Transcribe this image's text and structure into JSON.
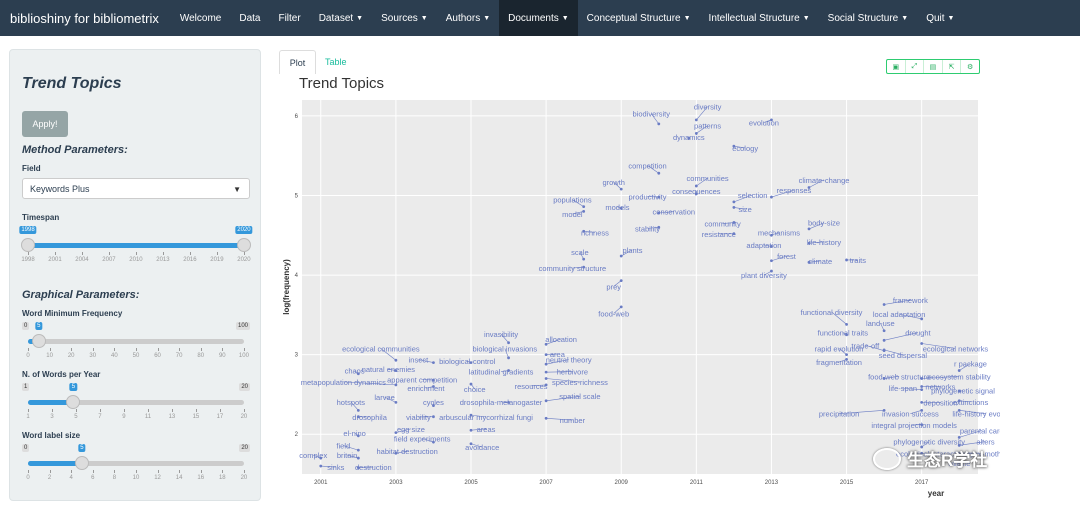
{
  "navbar": {
    "brand": "biblioshiny for bibliometrix",
    "items": [
      {
        "label": "Welcome",
        "caret": false
      },
      {
        "label": "Data",
        "caret": false
      },
      {
        "label": "Filter",
        "caret": false
      },
      {
        "label": "Dataset",
        "caret": true
      },
      {
        "label": "Sources",
        "caret": true
      },
      {
        "label": "Authors",
        "caret": true
      },
      {
        "label": "Documents",
        "caret": true,
        "active": true
      },
      {
        "label": "Conceptual Structure",
        "caret": true
      },
      {
        "label": "Intellectual Structure",
        "caret": true
      },
      {
        "label": "Social Structure",
        "caret": true
      },
      {
        "label": "Quit",
        "caret": true
      }
    ]
  },
  "sidebar": {
    "title": "Trend Topics",
    "apply_label": "Apply!",
    "method_heading": "Method Parameters:",
    "field_label": "Field",
    "field_value": "Keywords Plus",
    "timespan_label": "Timespan",
    "timespan": {
      "min": "1998",
      "max": "2020",
      "from": "1998",
      "to": "2020",
      "ticks": [
        "1998",
        "2001",
        "2004",
        "2007",
        "2010",
        "2013",
        "2016",
        "2019",
        "2020"
      ]
    },
    "graphical_heading": "Graphical Parameters:",
    "word_min_freq": {
      "label": "Word Minimum Frequency",
      "min": "0",
      "max": "100",
      "value": "5",
      "ticks": [
        "0",
        "10",
        "20",
        "30",
        "40",
        "50",
        "60",
        "70",
        "80",
        "90",
        "100"
      ]
    },
    "words_per_year": {
      "label": "N. of Words per Year",
      "min": "1",
      "max": "20",
      "value": "5",
      "ticks": [
        "1",
        "3",
        "5",
        "7",
        "9",
        "11",
        "13",
        "15",
        "17",
        "20"
      ]
    },
    "label_size": {
      "label": "Word label size",
      "min": "0",
      "max": "20",
      "value": "5",
      "ticks": [
        "0",
        "2",
        "4",
        "6",
        "8",
        "10",
        "12",
        "14",
        "16",
        "18",
        "20"
      ]
    }
  },
  "tabs": {
    "plot": "Plot",
    "table": "Table"
  },
  "toolbar_icons": [
    "camera-icon",
    "zoom-icon",
    "save-icon",
    "export-icon",
    "settings-icon"
  ],
  "chart_data": {
    "type": "scatter",
    "title": "Trend Topics",
    "xlabel": "year",
    "ylabel": "log(frequency)",
    "xlim": [
      2000.5,
      2018.5
    ],
    "ylim": [
      1.5,
      6.2
    ],
    "xticks": [
      "2001",
      "2003",
      "2005",
      "2007",
      "2009",
      "2011",
      "2013",
      "2015",
      "2017"
    ],
    "yticks": [
      "2",
      "3",
      "4",
      "5",
      "6"
    ],
    "accent": "#6a7cc4",
    "points": [
      {
        "label": "diversity",
        "x": 2011.0,
        "y": 5.95,
        "lx": 2011.3,
        "ly": 6.08
      },
      {
        "label": "biodiversity",
        "x": 2010.0,
        "y": 5.9,
        "lx": 2009.8,
        "ly": 5.99
      },
      {
        "label": "patterns",
        "x": 2011.0,
        "y": 5.78,
        "lx": 2011.3,
        "ly": 5.84
      },
      {
        "label": "evolution",
        "x": 2013.0,
        "y": 5.95,
        "lx": 2012.8,
        "ly": 5.88
      },
      {
        "label": "dynamics",
        "x": 2010.8,
        "y": 5.72,
        "lx": 2010.8,
        "ly": 5.7
      },
      {
        "label": "ecology",
        "x": 2012.0,
        "y": 5.62,
        "lx": 2012.3,
        "ly": 5.56
      },
      {
        "label": "competition",
        "x": 2010.0,
        "y": 5.28,
        "lx": 2009.7,
        "ly": 5.34
      },
      {
        "label": "communities",
        "x": 2011.0,
        "y": 5.12,
        "lx": 2011.3,
        "ly": 5.18
      },
      {
        "label": "growth",
        "x": 2009.0,
        "y": 5.08,
        "lx": 2008.8,
        "ly": 5.13
      },
      {
        "label": "climate-change",
        "x": 2014.0,
        "y": 5.1,
        "lx": 2014.4,
        "ly": 5.16
      },
      {
        "label": "consequences",
        "x": 2011.0,
        "y": 5.02,
        "lx": 2011.0,
        "ly": 5.02
      },
      {
        "label": "responses",
        "x": 2013.0,
        "y": 4.98,
        "lx": 2013.6,
        "ly": 5.03
      },
      {
        "label": "productivity",
        "x": 2010.0,
        "y": 4.98,
        "lx": 2009.7,
        "ly": 4.95
      },
      {
        "label": "selection",
        "x": 2012.0,
        "y": 4.92,
        "lx": 2012.5,
        "ly": 4.97
      },
      {
        "label": "populations",
        "x": 2008.0,
        "y": 4.86,
        "lx": 2007.7,
        "ly": 4.91
      },
      {
        "label": "models",
        "x": 2009.0,
        "y": 4.84,
        "lx": 2008.9,
        "ly": 4.82
      },
      {
        "label": "conservation",
        "x": 2010.0,
        "y": 4.78,
        "lx": 2010.4,
        "ly": 4.76
      },
      {
        "label": "size",
        "x": 2012.0,
        "y": 4.85,
        "lx": 2012.3,
        "ly": 4.79
      },
      {
        "label": "model",
        "x": 2008.0,
        "y": 4.8,
        "lx": 2007.7,
        "ly": 4.73
      },
      {
        "label": "body-size",
        "x": 2014.0,
        "y": 4.58,
        "lx": 2014.4,
        "ly": 4.62
      },
      {
        "label": "community",
        "x": 2012.0,
        "y": 4.66,
        "lx": 2011.7,
        "ly": 4.61
      },
      {
        "label": "stability",
        "x": 2010.0,
        "y": 4.6,
        "lx": 2009.7,
        "ly": 4.55
      },
      {
        "label": "richness",
        "x": 2008.0,
        "y": 4.55,
        "lx": 2008.3,
        "ly": 4.5
      },
      {
        "label": "mechanisms",
        "x": 2013.0,
        "y": 4.5,
        "lx": 2013.2,
        "ly": 4.5
      },
      {
        "label": "resistance",
        "x": 2012.0,
        "y": 4.52,
        "lx": 2011.6,
        "ly": 4.48
      },
      {
        "label": "life-history",
        "x": 2014.0,
        "y": 4.4,
        "lx": 2014.4,
        "ly": 4.38
      },
      {
        "label": "adaptation",
        "x": 2013.0,
        "y": 4.36,
        "lx": 2012.8,
        "ly": 4.34
      },
      {
        "label": "plants",
        "x": 2009.0,
        "y": 4.24,
        "lx": 2009.3,
        "ly": 4.28
      },
      {
        "label": "scale",
        "x": 2008.0,
        "y": 4.2,
        "lx": 2007.9,
        "ly": 4.25
      },
      {
        "label": "forest",
        "x": 2013.0,
        "y": 4.18,
        "lx": 2013.4,
        "ly": 4.2
      },
      {
        "label": "climate",
        "x": 2014.0,
        "y": 4.16,
        "lx": 2014.3,
        "ly": 4.14
      },
      {
        "label": "traits",
        "x": 2015.0,
        "y": 4.19,
        "lx": 2015.3,
        "ly": 4.15
      },
      {
        "label": "community structure",
        "x": 2008.0,
        "y": 4.1,
        "lx": 2007.7,
        "ly": 4.05
      },
      {
        "label": "plant diversity",
        "x": 2013.0,
        "y": 4.05,
        "lx": 2012.8,
        "ly": 3.96
      },
      {
        "label": "prey",
        "x": 2009.0,
        "y": 3.93,
        "lx": 2008.8,
        "ly": 3.82
      },
      {
        "label": "food-web",
        "x": 2009.0,
        "y": 3.6,
        "lx": 2008.8,
        "ly": 3.48
      },
      {
        "label": "framework",
        "x": 2016.0,
        "y": 3.63,
        "lx": 2016.7,
        "ly": 3.65
      },
      {
        "label": "functional diversity",
        "x": 2015.0,
        "y": 3.38,
        "lx": 2014.6,
        "ly": 3.5
      },
      {
        "label": "local adaptation",
        "x": 2017.0,
        "y": 3.45,
        "lx": 2016.4,
        "ly": 3.47
      },
      {
        "label": "land-use",
        "x": 2016.0,
        "y": 3.3,
        "lx": 2015.9,
        "ly": 3.36
      },
      {
        "label": "invasibility",
        "x": 2006.0,
        "y": 3.15,
        "lx": 2005.8,
        "ly": 3.22
      },
      {
        "label": "allocation",
        "x": 2007.0,
        "y": 3.13,
        "lx": 2007.4,
        "ly": 3.16
      },
      {
        "label": "functional traits",
        "x": 2015.0,
        "y": 3.25,
        "lx": 2014.9,
        "ly": 3.24
      },
      {
        "label": "drought",
        "x": 2016.0,
        "y": 3.18,
        "lx": 2016.9,
        "ly": 3.24
      },
      {
        "label": "ecological communities",
        "x": 2003.0,
        "y": 2.93,
        "lx": 2002.6,
        "ly": 3.04
      },
      {
        "label": "biological invasions",
        "x": 2006.0,
        "y": 2.96,
        "lx": 2005.9,
        "ly": 3.04
      },
      {
        "label": "trade-off",
        "x": 2016.0,
        "y": 3.05,
        "lx": 2015.5,
        "ly": 3.08
      },
      {
        "label": "ecological networks",
        "x": 2017.0,
        "y": 3.14,
        "lx": 2017.9,
        "ly": 3.04
      },
      {
        "label": "rapid evolution",
        "x": 2015.0,
        "y": 3.0,
        "lx": 2014.8,
        "ly": 3.04
      },
      {
        "label": "area",
        "x": 2007.0,
        "y": 3.0,
        "lx": 2007.3,
        "ly": 2.97
      },
      {
        "label": "seed dispersal",
        "x": 2016.0,
        "y": 3.06,
        "lx": 2016.5,
        "ly": 2.96
      },
      {
        "label": "insect",
        "x": 2004.0,
        "y": 2.9,
        "lx": 2003.6,
        "ly": 2.9
      },
      {
        "label": "biological-control",
        "x": 2005.0,
        "y": 2.9,
        "lx": 2004.9,
        "ly": 2.88
      },
      {
        "label": "neutral theory",
        "x": 2007.0,
        "y": 2.88,
        "lx": 2007.6,
        "ly": 2.9
      },
      {
        "label": "fragmentation",
        "x": 2015.0,
        "y": 2.94,
        "lx": 2014.8,
        "ly": 2.87
      },
      {
        "label": "r package",
        "x": 2018.0,
        "y": 2.8,
        "lx": 2018.3,
        "ly": 2.85
      },
      {
        "label": "chaos",
        "x": 2002.0,
        "y": 2.76,
        "lx": 2001.9,
        "ly": 2.76
      },
      {
        "label": "natural enemies",
        "x": 2003.0,
        "y": 2.8,
        "lx": 2002.8,
        "ly": 2.78
      },
      {
        "label": "latitudinal gradients",
        "x": 2006.0,
        "y": 2.8,
        "lx": 2005.8,
        "ly": 2.75
      },
      {
        "label": "herbivore",
        "x": 2007.0,
        "y": 2.78,
        "lx": 2007.7,
        "ly": 2.75
      },
      {
        "label": "food-web structure",
        "x": 2016.0,
        "y": 2.7,
        "lx": 2016.4,
        "ly": 2.69
      },
      {
        "label": "ecosystem stability",
        "x": 2017.0,
        "y": 2.7,
        "lx": 2018.0,
        "ly": 2.69
      },
      {
        "label": "apparent competition",
        "x": 2004.0,
        "y": 2.68,
        "lx": 2003.7,
        "ly": 2.65
      },
      {
        "label": "species-richness",
        "x": 2007.0,
        "y": 2.7,
        "lx": 2007.9,
        "ly": 2.62
      },
      {
        "label": "metapopulation dynamics",
        "x": 2003.0,
        "y": 2.62,
        "lx": 2001.6,
        "ly": 2.62
      },
      {
        "label": "enrichment",
        "x": 2004.0,
        "y": 2.6,
        "lx": 2003.8,
        "ly": 2.54
      },
      {
        "label": "choice",
        "x": 2005.0,
        "y": 2.63,
        "lx": 2005.1,
        "ly": 2.53
      },
      {
        "label": "resources",
        "x": 2007.0,
        "y": 2.62,
        "lx": 2006.6,
        "ly": 2.57
      },
      {
        "label": "life-span",
        "x": 2017.0,
        "y": 2.56,
        "lx": 2016.5,
        "ly": 2.54
      },
      {
        "label": "networks",
        "x": 2017.0,
        "y": 2.6,
        "lx": 2017.5,
        "ly": 2.56
      },
      {
        "label": "phylogenetic signal",
        "x": 2018.0,
        "y": 2.54,
        "lx": 2018.1,
        "ly": 2.51
      },
      {
        "label": "larvae",
        "x": 2003.0,
        "y": 2.4,
        "lx": 2002.7,
        "ly": 2.43
      },
      {
        "label": "spatial scale",
        "x": 2007.0,
        "y": 2.42,
        "lx": 2007.9,
        "ly": 2.44
      },
      {
        "label": "extinctions",
        "x": 2018.0,
        "y": 2.42,
        "lx": 2018.3,
        "ly": 2.37
      },
      {
        "label": "hotspots",
        "x": 2002.0,
        "y": 2.3,
        "lx": 2001.8,
        "ly": 2.37
      },
      {
        "label": "cycles",
        "x": 2004.0,
        "y": 2.36,
        "lx": 2004.0,
        "ly": 2.37
      },
      {
        "label": "drosophila-melanogaster",
        "x": 2006.0,
        "y": 2.4,
        "lx": 2005.8,
        "ly": 2.37
      },
      {
        "label": "deposition",
        "x": 2017.0,
        "y": 2.4,
        "lx": 2017.5,
        "ly": 2.36
      },
      {
        "label": "precipitation",
        "x": 2016.0,
        "y": 2.3,
        "lx": 2014.8,
        "ly": 2.22
      },
      {
        "label": "invasion success",
        "x": 2017.0,
        "y": 2.3,
        "lx": 2016.7,
        "ly": 2.22
      },
      {
        "label": "life-history evolution",
        "x": 2018.0,
        "y": 2.3,
        "lx": 2018.7,
        "ly": 2.22
      },
      {
        "label": "drosophila",
        "x": 2002.0,
        "y": 2.22,
        "lx": 2002.3,
        "ly": 2.18
      },
      {
        "label": "viability",
        "x": 2004.0,
        "y": 2.22,
        "lx": 2003.6,
        "ly": 2.18
      },
      {
        "label": "arbuscular mycorrhizal fungi",
        "x": 2005.0,
        "y": 2.24,
        "lx": 2005.4,
        "ly": 2.18
      },
      {
        "label": "number",
        "x": 2007.0,
        "y": 2.2,
        "lx": 2007.7,
        "ly": 2.14
      },
      {
        "label": "integral projection models",
        "x": 2017.0,
        "y": 2.12,
        "lx": 2016.8,
        "ly": 2.08
      },
      {
        "label": "egg size",
        "x": 2003.0,
        "y": 2.02,
        "lx": 2003.4,
        "ly": 2.03
      },
      {
        "label": "areas",
        "x": 2005.0,
        "y": 2.05,
        "lx": 2005.4,
        "ly": 2.03
      },
      {
        "label": "el-nino",
        "x": 2002.0,
        "y": 1.98,
        "lx": 2001.9,
        "ly": 1.98
      },
      {
        "label": "parental care",
        "x": 2018.0,
        "y": 1.96,
        "lx": 2018.6,
        "ly": 2.01
      },
      {
        "label": "field experiments",
        "x": 2004.0,
        "y": 1.9,
        "lx": 2003.7,
        "ly": 1.91
      },
      {
        "label": "phylogenetic diversity",
        "x": 2017.0,
        "y": 1.84,
        "lx": 2017.2,
        "ly": 1.87
      },
      {
        "label": "alters",
        "x": 2018.0,
        "y": 1.86,
        "lx": 2018.7,
        "ly": 1.87
      },
      {
        "label": "avoidance",
        "x": 2005.0,
        "y": 1.88,
        "lx": 2005.3,
        "ly": 1.8
      },
      {
        "label": "field",
        "x": 2002.0,
        "y": 1.8,
        "lx": 2001.6,
        "ly": 1.82
      },
      {
        "label": "habitat destruction",
        "x": 2003.0,
        "y": 1.76,
        "lx": 2003.3,
        "ly": 1.75
      },
      {
        "label": "ecological interactions",
        "x": 2017.0,
        "y": 1.76,
        "lx": 2017.3,
        "ly": 1.72
      },
      {
        "label": "gypsy-moth",
        "x": 2018.0,
        "y": 1.76,
        "lx": 2018.6,
        "ly": 1.72
      },
      {
        "label": "complex",
        "x": 2001.0,
        "y": 1.7,
        "lx": 2000.8,
        "ly": 1.7
      },
      {
        "label": "britain",
        "x": 2002.0,
        "y": 1.7,
        "lx": 2001.7,
        "ly": 1.7
      },
      {
        "label": "wildlife",
        "x": 2018.0,
        "y": 1.64,
        "lx": 2018.0,
        "ly": 1.6
      },
      {
        "label": "sinks",
        "x": 2001.0,
        "y": 1.6,
        "lx": 2001.4,
        "ly": 1.55
      },
      {
        "label": "destruction",
        "x": 2002.0,
        "y": 1.58,
        "lx": 2002.4,
        "ly": 1.55
      }
    ]
  },
  "watermark": {
    "text": "生态R学社"
  }
}
